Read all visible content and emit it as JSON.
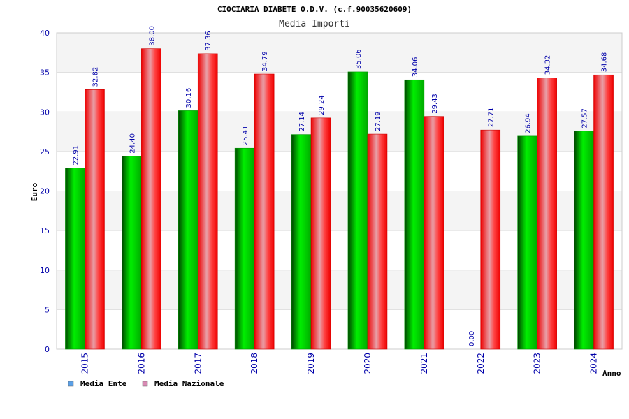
{
  "chart_data": {
    "type": "bar",
    "title": "CIOCIARIA DIABETE O.D.V. (c.f.90035620609)",
    "subtitle": "Media Importi",
    "xlabel": "Anno",
    "ylabel": "Euro",
    "ylim": [
      0,
      40
    ],
    "yticks": [
      "0",
      "5",
      "10",
      "15",
      "20",
      "25",
      "30",
      "35",
      "40"
    ],
    "grid": true,
    "legend_position": "bottom-left",
    "categories": [
      "2015",
      "2016",
      "2017",
      "2018",
      "2019",
      "2020",
      "2021",
      "2022",
      "2023",
      "2024"
    ],
    "series": [
      {
        "name": "Media Ente",
        "color": "#00cc00",
        "legend_color": "#5aa0e8",
        "values": [
          22.91,
          24.4,
          30.16,
          25.41,
          27.14,
          35.06,
          34.06,
          0.0,
          26.94,
          27.57
        ],
        "labels": [
          "22.91",
          "24.40",
          "30.16",
          "25.41",
          "27.14",
          "35.06",
          "34.06",
          "0.00",
          "26.94",
          "27.57"
        ]
      },
      {
        "name": "Media Nazionale",
        "color": "#ff0000",
        "legend_color": "#d98ab4",
        "values": [
          32.82,
          38.0,
          37.36,
          34.79,
          29.24,
          27.19,
          29.43,
          27.71,
          34.32,
          34.68
        ],
        "labels": [
          "32.82",
          "38.00",
          "37.36",
          "34.79",
          "29.24",
          "27.19",
          "29.43",
          "27.71",
          "34.32",
          "34.68"
        ]
      }
    ]
  }
}
